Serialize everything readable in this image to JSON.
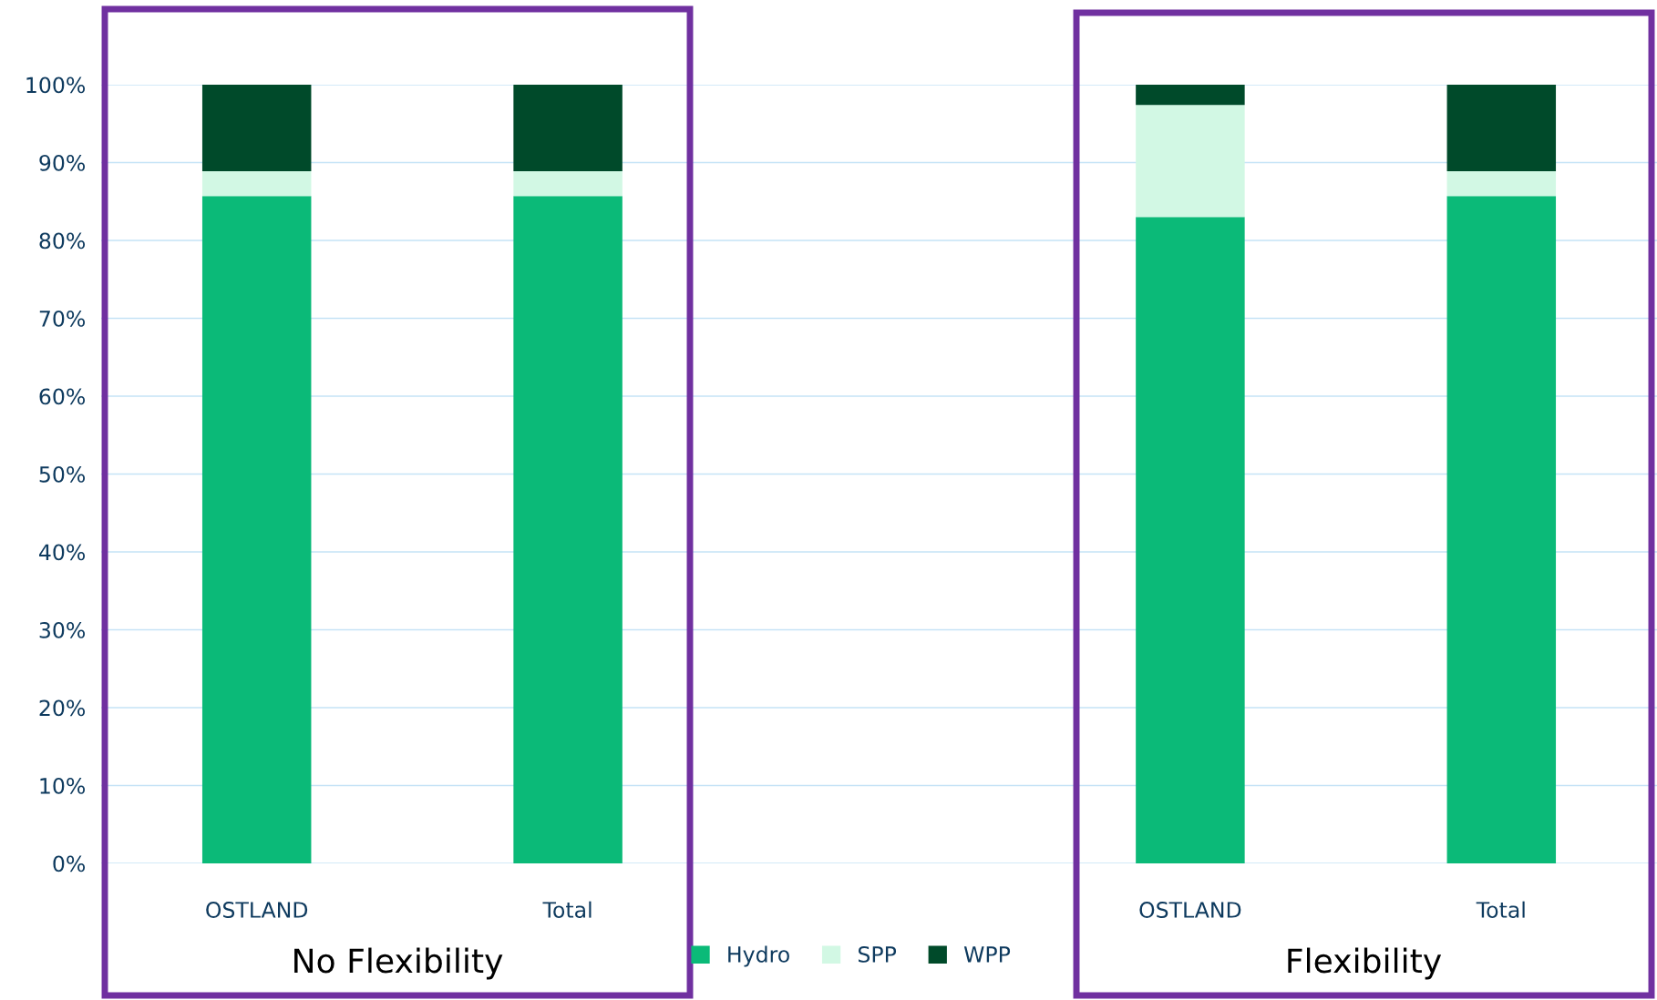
{
  "chart_data": {
    "type": "bar",
    "stacked": true,
    "categories": [
      "OSTLAND",
      "Total",
      null,
      "OSTLAND",
      "Total"
    ],
    "series": [
      {
        "name": "Hydro",
        "color": "#0bba78",
        "values": [
          85.7,
          85.7,
          null,
          83.0,
          85.7
        ]
      },
      {
        "name": "SPP",
        "color": "#d2f8e4",
        "values": [
          3.2,
          3.2,
          null,
          14.4,
          3.2
        ]
      },
      {
        "name": "WPP",
        "color": "#004a2a",
        "values": [
          11.1,
          11.1,
          null,
          2.6,
          11.1
        ]
      }
    ],
    "ylim": [
      0,
      100
    ],
    "yticks": [
      {
        "value": 0,
        "label": "0%"
      },
      {
        "value": 10,
        "label": "10%"
      },
      {
        "value": 20,
        "label": "20%"
      },
      {
        "value": 30,
        "label": "30%"
      },
      {
        "value": 40,
        "label": "40%"
      },
      {
        "value": 50,
        "label": "50%"
      },
      {
        "value": 60,
        "label": "60%"
      },
      {
        "value": 70,
        "label": "70%"
      },
      {
        "value": 80,
        "label": "80%"
      },
      {
        "value": 90,
        "label": "90%"
      },
      {
        "value": 100,
        "label": "100%"
      }
    ],
    "grid": "y",
    "legend": "bottom",
    "annotations": [
      "No Flexibility",
      "Flexibility"
    ]
  }
}
